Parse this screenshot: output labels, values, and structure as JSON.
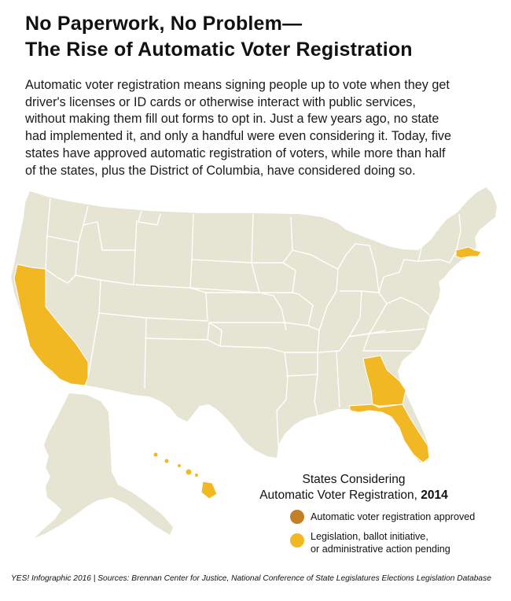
{
  "title": {
    "line1": "No Paperwork, No Problem—",
    "line2": "The Rise of Automatic Voter Registration"
  },
  "intro": {
    "lines": [
      "Automatic voter registration means signing people up to vote when they get",
      "driver's licenses or ID cards or otherwise interact with public services,",
      "without making them fill out forms to opt in. Just a few years ago, no state",
      "had implemented it, and only a handful were even considering it. Today, five",
      "states have approved automatic registration of voters, while more than half",
      "of the states, plus the District of Columbia, have considered doing so."
    ]
  },
  "colors": {
    "land": "#e6e4d2",
    "border": "#ffffff",
    "approved": "#c47f26",
    "pending": "#f2b824"
  },
  "map": {
    "highlighted_states": [
      {
        "name": "California",
        "status": "pending"
      },
      {
        "name": "Georgia",
        "status": "pending"
      },
      {
        "name": "Florida",
        "status": "pending"
      },
      {
        "name": "Massachusetts",
        "status": "pending"
      },
      {
        "name": "Hawaii",
        "status": "pending"
      }
    ]
  },
  "legend": {
    "title_line1": "States Considering",
    "title_line2": "Automatic Voter Registration,",
    "year": "2014",
    "items": [
      {
        "label_lines": [
          "Automatic voter registration approved"
        ],
        "color": "#c47f26",
        "icon": "circle-icon"
      },
      {
        "label_lines": [
          "Legislation, ballot initiative,",
          "or administrative action pending"
        ],
        "color": "#f2b824",
        "icon": "circle-icon"
      }
    ]
  },
  "footer": {
    "text": "YES! Infographic 2016  |  Sources: Brennan Center for Justice, National Conference of State Legislatures Elections Legislation Database"
  }
}
